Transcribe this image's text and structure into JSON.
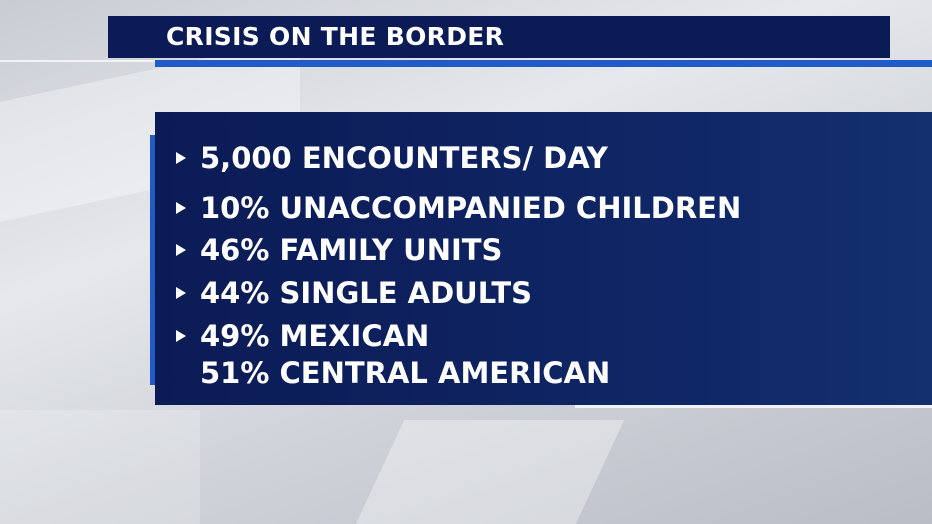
{
  "header": {
    "title": "CRISIS ON THE BORDER"
  },
  "bullets": [
    {
      "lines": [
        "5,000 ENCOUNTERS/ DAY"
      ]
    },
    {
      "lines": [
        "10% UNACCOMPANIED CHILDREN"
      ]
    },
    {
      "lines": [
        "46% FAMILY UNITS"
      ]
    },
    {
      "lines": [
        "44% SINGLE ADULTS"
      ]
    },
    {
      "lines": [
        "49% MEXICAN",
        "51% CENTRAL AMERICAN"
      ]
    }
  ]
}
